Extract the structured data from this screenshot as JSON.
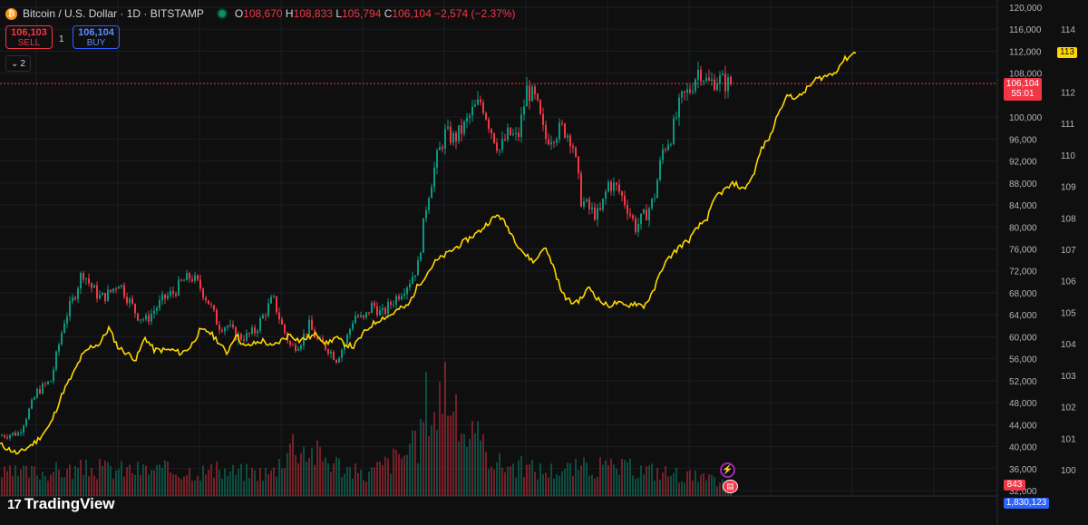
{
  "header": {
    "symbol_icon": "bitcoin-icon",
    "title": "Bitcoin / U.S. Dollar · 1D · BITSTAMP",
    "o_label": "O",
    "o_value": "108,670",
    "h_label": "H",
    "h_value": "108,833",
    "l_label": "L",
    "l_value": "105,794",
    "c_label": "C",
    "c_value": "106,104",
    "change": "−2,574 (−2.37%)"
  },
  "trade": {
    "sell_price": "106,103",
    "sell_label": "SELL",
    "spread": "1",
    "buy_price": "106,104",
    "buy_label": "BUY"
  },
  "indicators_toggle": {
    "count": "2",
    "icon": "chevron-down-icon"
  },
  "brand": {
    "logo": "TradingView"
  },
  "price_axis": {
    "ticks": [
      "120,000",
      "116,000",
      "112,000",
      "108,000",
      "100,000",
      "96,000",
      "92,000",
      "88,000",
      "84,000",
      "80,000",
      "76,000",
      "72,000",
      "68,000",
      "64,000",
      "60,000",
      "56,000",
      "52,000",
      "48,000",
      "44,000",
      "40,000",
      "36,000",
      "32,000"
    ],
    "current_price": "106,104",
    "countdown": "55:01"
  },
  "right_axis": {
    "ticks": [
      "114",
      "113",
      "112",
      "111",
      "110",
      "109",
      "108",
      "107",
      "106",
      "105",
      "104",
      "103",
      "102",
      "101",
      "100"
    ],
    "current_value": "113"
  },
  "volume": {
    "label": "843",
    "secondary_label": "1,830,123"
  },
  "colors": {
    "up": "#089981",
    "down": "#f23645",
    "overlay": "#ffd600",
    "background": "#0f0f0f"
  },
  "events": {
    "first_icon": "lightning-icon",
    "second_icon": "us-flag-icon"
  },
  "chart_data": {
    "type": "line",
    "title": "Bitcoin / U.S. Dollar · 1D · BITSTAMP",
    "price_range": [
      30000,
      122000
    ],
    "right_axis_range": [
      99.5,
      114.8
    ],
    "series": [
      {
        "name": "Bitcoin / U.S. Dollar",
        "style": "candlestick",
        "points": [
          [
            0,
            42000
          ],
          [
            20,
            42500
          ],
          [
            40,
            50000
          ],
          [
            55,
            52000
          ],
          [
            70,
            63000
          ],
          [
            80,
            67000
          ],
          [
            90,
            72000
          ],
          [
            100,
            69000
          ],
          [
            110,
            67000
          ],
          [
            120,
            68000
          ],
          [
            130,
            70000
          ],
          [
            140,
            67000
          ],
          [
            150,
            64000
          ],
          [
            160,
            63000
          ],
          [
            170,
            65000
          ],
          [
            180,
            67000
          ],
          [
            190,
            68000
          ],
          [
            200,
            70000
          ],
          [
            210,
            71000
          ],
          [
            220,
            69000
          ],
          [
            230,
            66000
          ],
          [
            240,
            62000
          ],
          [
            250,
            62000
          ],
          [
            260,
            60000
          ],
          [
            270,
            60000
          ],
          [
            280,
            61000
          ],
          [
            290,
            64000
          ],
          [
            300,
            67000
          ],
          [
            310,
            62000
          ],
          [
            320,
            58000
          ],
          [
            330,
            59000
          ],
          [
            340,
            62000
          ],
          [
            350,
            59000
          ],
          [
            360,
            58000
          ],
          [
            370,
            56000
          ],
          [
            380,
            59000
          ],
          [
            390,
            64000
          ],
          [
            400,
            63000
          ],
          [
            410,
            66000
          ],
          [
            420,
            64000
          ],
          [
            430,
            66000
          ],
          [
            440,
            68000
          ],
          [
            450,
            70000
          ],
          [
            460,
            73000
          ],
          [
            470,
            85000
          ],
          [
            480,
            92000
          ],
          [
            490,
            97000
          ],
          [
            500,
            96000
          ],
          [
            510,
            98000
          ],
          [
            520,
            101000
          ],
          [
            530,
            103000
          ],
          [
            540,
            98000
          ],
          [
            550,
            94000
          ],
          [
            560,
            97000
          ],
          [
            570,
            96000
          ],
          [
            580,
            105000
          ],
          [
            590,
            103000
          ],
          [
            600,
            96000
          ],
          [
            610,
            97000
          ],
          [
            620,
            98000
          ],
          [
            630,
            96000
          ],
          [
            640,
            85000
          ],
          [
            650,
            83000
          ],
          [
            660,
            82000
          ],
          [
            670,
            88000
          ],
          [
            680,
            87000
          ],
          [
            690,
            84000
          ],
          [
            700,
            80000
          ],
          [
            710,
            82000
          ],
          [
            720,
            85000
          ],
          [
            730,
            94000
          ],
          [
            740,
            97000
          ],
          [
            750,
            103000
          ],
          [
            760,
            105000
          ],
          [
            770,
            109000
          ],
          [
            780,
            106000
          ],
          [
            790,
            107000
          ],
          [
            800,
            106104
          ]
        ]
      },
      {
        "name": "Overlay",
        "style": "line",
        "axis": "right",
        "points": [
          [
            0,
            100.8
          ],
          [
            20,
            100.5
          ],
          [
            40,
            100.9
          ],
          [
            55,
            101.4
          ],
          [
            70,
            102.5
          ],
          [
            80,
            103.0
          ],
          [
            90,
            103.6
          ],
          [
            100,
            103.9
          ],
          [
            110,
            104.0
          ],
          [
            120,
            104.5
          ],
          [
            130,
            103.9
          ],
          [
            140,
            103.7
          ],
          [
            150,
            103.5
          ],
          [
            160,
            104.2
          ],
          [
            170,
            103.8
          ],
          [
            180,
            103.8
          ],
          [
            190,
            103.8
          ],
          [
            200,
            103.7
          ],
          [
            210,
            103.9
          ],
          [
            220,
            104.4
          ],
          [
            230,
            104.4
          ],
          [
            240,
            104.1
          ],
          [
            250,
            103.7
          ],
          [
            260,
            104.3
          ],
          [
            270,
            103.9
          ],
          [
            280,
            104.0
          ],
          [
            290,
            104.1
          ],
          [
            300,
            103.9
          ],
          [
            310,
            104.1
          ],
          [
            320,
            104.3
          ],
          [
            330,
            104.1
          ],
          [
            340,
            104.2
          ],
          [
            350,
            104.3
          ],
          [
            360,
            104.0
          ],
          [
            370,
            104.2
          ],
          [
            380,
            104.0
          ],
          [
            390,
            103.9
          ],
          [
            400,
            104.3
          ],
          [
            410,
            104.6
          ],
          [
            420,
            104.8
          ],
          [
            430,
            104.9
          ],
          [
            440,
            105.1
          ],
          [
            450,
            105.2
          ],
          [
            460,
            105.8
          ],
          [
            470,
            106.2
          ],
          [
            480,
            106.6
          ],
          [
            490,
            106.8
          ],
          [
            500,
            107.0
          ],
          [
            510,
            107.2
          ],
          [
            520,
            107.4
          ],
          [
            530,
            107.6
          ],
          [
            540,
            107.9
          ],
          [
            550,
            108.1
          ],
          [
            560,
            107.7
          ],
          [
            570,
            107.2
          ],
          [
            580,
            106.8
          ],
          [
            590,
            106.6
          ],
          [
            600,
            107.1
          ],
          [
            610,
            106.5
          ],
          [
            620,
            105.6
          ],
          [
            630,
            105.3
          ],
          [
            640,
            105.4
          ],
          [
            650,
            105.8
          ],
          [
            660,
            105.4
          ],
          [
            670,
            105.2
          ],
          [
            680,
            105.3
          ],
          [
            690,
            105.2
          ],
          [
            700,
            105.3
          ],
          [
            710,
            105.2
          ],
          [
            720,
            105.6
          ],
          [
            730,
            106.4
          ],
          [
            740,
            106.8
          ],
          [
            750,
            107.1
          ],
          [
            760,
            107.3
          ],
          [
            770,
            107.7
          ],
          [
            780,
            108.0
          ],
          [
            790,
            108.7
          ],
          [
            800,
            108.9
          ],
          [
            810,
            109.1
          ],
          [
            820,
            108.9
          ],
          [
            830,
            109.3
          ],
          [
            840,
            110.2
          ],
          [
            850,
            110.6
          ],
          [
            860,
            111.5
          ],
          [
            870,
            111.9
          ],
          [
            880,
            111.8
          ],
          [
            890,
            112.1
          ],
          [
            900,
            112.4
          ],
          [
            910,
            112.5
          ],
          [
            920,
            112.6
          ],
          [
            930,
            113.0
          ],
          [
            945,
            113.3
          ]
        ]
      },
      {
        "name": "Volume",
        "style": "histogram",
        "points": [
          [
            0,
            12
          ],
          [
            100,
            15
          ],
          [
            200,
            14
          ],
          [
            300,
            13
          ],
          [
            320,
            30
          ],
          [
            400,
            11
          ],
          [
            460,
            28
          ],
          [
            470,
            55
          ],
          [
            480,
            45
          ],
          [
            490,
            68
          ],
          [
            500,
            42
          ],
          [
            550,
            18
          ],
          [
            600,
            14
          ],
          [
            650,
            16
          ],
          [
            700,
            15
          ],
          [
            750,
            12
          ],
          [
            800,
            7
          ]
        ]
      }
    ],
    "grid": true,
    "legend": "none"
  }
}
